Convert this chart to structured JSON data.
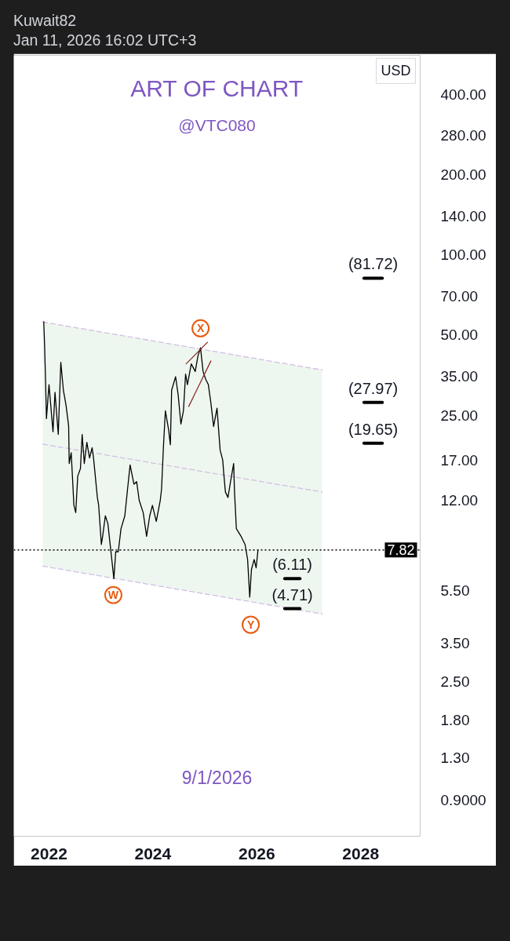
{
  "chart_data": {
    "type": "line",
    "title": "ART OF CHART",
    "subtitle": "@VTC080",
    "ylabel": "USD",
    "log": "y",
    "grid": false,
    "xlim": [
      "2021-04-28",
      "2029-02-22"
    ],
    "xticks": [
      {
        "value": "2022-01-01",
        "label": "2022"
      },
      {
        "value": "2024-01-01",
        "label": "2024"
      },
      {
        "value": "2026-01-01",
        "label": "2026"
      },
      {
        "value": "2028-01-01",
        "label": "2028"
      }
    ],
    "ylim": [
      0.66,
      560
    ],
    "yticks": [
      {
        "value": 0.9,
        "label": "0.9000"
      },
      {
        "value": 1.3,
        "label": "1.30"
      },
      {
        "value": 1.8,
        "label": "1.80"
      },
      {
        "value": 2.5,
        "label": "2.50"
      },
      {
        "value": 3.5,
        "label": "3.50"
      },
      {
        "value": 5.5,
        "label": "5.50"
      },
      {
        "value": 12,
        "label": "12.00"
      },
      {
        "value": 17,
        "label": "17.00"
      },
      {
        "value": 25,
        "label": "25.00"
      },
      {
        "value": 35,
        "label": "35.00"
      },
      {
        "value": 50,
        "label": "50.00"
      },
      {
        "value": 70,
        "label": "70.00"
      },
      {
        "value": 100,
        "label": "100.00"
      },
      {
        "value": 140,
        "label": "140.00"
      },
      {
        "value": 200,
        "label": "200.00"
      },
      {
        "value": 280,
        "label": "280.00"
      },
      {
        "value": 400,
        "label": "400.00"
      }
    ],
    "ref_lines": [
      {
        "axis": "y",
        "value": 7.82,
        "label": "7.82",
        "color": "#000000",
        "line_style": "dotted"
      }
    ],
    "annotations": [
      "Kuwait82",
      "Jan 11, 2026 16:02 UTC+3",
      "9/1/2026",
      {
        "text": "W",
        "x": "2023-03-29",
        "y": 5.3
      },
      {
        "text": "X",
        "x": "2024-12-01",
        "y": 53
      },
      {
        "text": "Y",
        "x": "2025-11-19",
        "y": 4.1
      }
    ],
    "series": [
      {
        "color": "#d4bde6",
        "line_style": "dashed",
        "x": [
          "2021-11-18",
          "2027-04-05"
        ],
        "values": [
          19.5,
          12.9
        ],
        "lower": [
          6.8,
          4.5
        ],
        "upper": [
          56,
          37
        ]
      },
      {
        "color": "#d4bde6",
        "line_style": "dashed",
        "x": [
          "2021-11-18",
          "2027-04-05"
        ],
        "values": [
          56,
          37
        ]
      },
      {
        "color": "#d4bde6",
        "line_style": "dashed",
        "x": [
          "2021-11-18",
          "2027-04-05"
        ],
        "values": [
          6.8,
          4.5
        ]
      },
      {
        "color": "#000000",
        "x": [
          "2021-11-25",
          "2021-12-01",
          "2021-12-08",
          "2021-12-14",
          "2022-01-01",
          "2022-01-29",
          "2022-02-12",
          "2022-03-07",
          "2022-03-25",
          "2022-04-12",
          "2022-05-01",
          "2022-05-19",
          "2022-05-23",
          "2022-06-06",
          "2022-06-25",
          "2022-07-08",
          "2022-07-22",
          "2022-08-10",
          "2022-08-22",
          "2022-09-06",
          "2022-09-24",
          "2022-10-13",
          "2022-10-31",
          "2022-11-10",
          "2022-12-07",
          "2022-12-16",
          "2023-01-04",
          "2023-01-13",
          "2023-02-01",
          "2023-02-19",
          "2023-03-09",
          "2023-04-02",
          "2023-04-15",
          "2023-05-03",
          "2023-05-22",
          "2023-06-18",
          "2023-07-07",
          "2023-07-25",
          "2023-08-21",
          "2023-09-09",
          "2023-09-27",
          "2023-10-25",
          "2023-11-18",
          "2023-12-10",
          "2023-12-29",
          "2024-01-25",
          "2024-02-22",
          "2024-03-02",
          "2024-03-15",
          "2024-03-29",
          "2024-04-20",
          "2024-05-03",
          "2024-05-12",
          "2024-06-09",
          "2024-06-27",
          "2024-07-16",
          "2024-08-03",
          "2024-08-18",
          "2024-08-31",
          "2024-09-27",
          "2024-10-25",
          "2024-11-13",
          "2024-12-01",
          "2024-12-19",
          "2025-01-07",
          "2025-01-25",
          "2025-02-12",
          "2025-03-03",
          "2025-03-27",
          "2025-04-18",
          "2025-05-06",
          "2025-05-15",
          "2025-05-25",
          "2025-06-12",
          "2025-06-30",
          "2025-07-22",
          "2025-07-28",
          "2025-08-10",
          "2025-09-12",
          "2025-10-10",
          "2025-10-28",
          "2025-11-12",
          "2025-11-24",
          "2025-12-13",
          "2025-12-27",
          "2026-01-09"
        ],
        "values": [
          56.1,
          45.7,
          33.3,
          24.3,
          32.6,
          21.7,
          30.5,
          21.2,
          39.5,
          31.1,
          27.2,
          22.8,
          16.5,
          18.1,
          11.5,
          10.8,
          14.8,
          15.8,
          21.2,
          16.5,
          19.8,
          17.3,
          18.9,
          17.3,
          12.3,
          11.5,
          8.2,
          8.8,
          10.5,
          9.8,
          8.0,
          6.1,
          7.7,
          7.7,
          9.4,
          10.5,
          13.2,
          16.3,
          13.8,
          14.1,
          12.0,
          10.8,
          8.8,
          10.5,
          11.5,
          10.0,
          12.0,
          13.2,
          18.9,
          26.0,
          22.2,
          19.4,
          31.1,
          34.9,
          29.8,
          23.2,
          26.0,
          35.7,
          32.6,
          39.0,
          36.5,
          41.8,
          44.8,
          36.5,
          34.1,
          32.6,
          27.8,
          22.7,
          26.6,
          18.5,
          17.0,
          14.8,
          12.9,
          12.3,
          14.1,
          16.5,
          12.9,
          9.4,
          8.8,
          8.2,
          7.2,
          5.2,
          6.6,
          7.2,
          6.7,
          7.82
        ]
      },
      {
        "color": "#8b2c2c",
        "x": [
          "2024-08-22",
          "2025-01-19"
        ],
        "values": [
          39,
          47
        ]
      },
      {
        "color": "#8b2c2c",
        "x": [
          "2024-09-09",
          "2025-02-12"
        ],
        "values": [
          27,
          40
        ]
      },
      {
        "name": "(81.72)",
        "color": "#000000",
        "x": [
          "2028-01-24",
          "2028-06-01"
        ],
        "values": [
          81.72,
          81.72
        ]
      },
      {
        "name": "(27.97)",
        "color": "#000000",
        "x": [
          "2028-01-24",
          "2028-06-01"
        ],
        "values": [
          27.97,
          27.97
        ]
      },
      {
        "name": "(19.65)",
        "color": "#000000",
        "x": [
          "2028-01-24",
          "2028-06-01"
        ],
        "values": [
          19.65,
          19.65
        ]
      },
      {
        "name": "(6.11)",
        "color": "#000000",
        "x": [
          "2026-07-16",
          "2026-10-31"
        ],
        "values": [
          6.11,
          6.11
        ]
      },
      {
        "name": "(4.71)",
        "color": "#000000",
        "x": [
          "2026-07-16",
          "2026-10-31"
        ],
        "values": [
          4.71,
          4.71
        ]
      }
    ]
  }
}
